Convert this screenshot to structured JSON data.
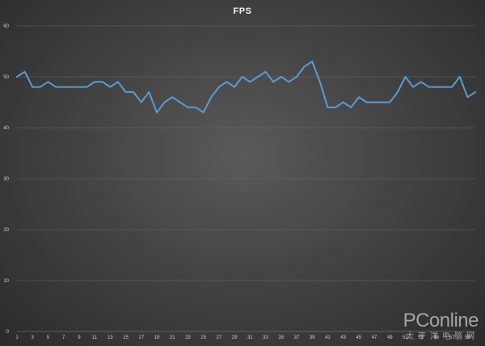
{
  "chart_data": {
    "type": "line",
    "title": "FPS",
    "xlabel": "",
    "ylabel": "",
    "ylim": [
      0,
      60
    ],
    "yticks": [
      "0",
      "10",
      "20",
      "30",
      "40",
      "50",
      "60"
    ],
    "grid": "horizontal",
    "legend": "none",
    "x": [
      1,
      2,
      3,
      4,
      5,
      6,
      7,
      8,
      9,
      10,
      11,
      12,
      13,
      14,
      15,
      16,
      17,
      18,
      19,
      20,
      21,
      22,
      23,
      24,
      25,
      26,
      27,
      28,
      29,
      30,
      31,
      32,
      33,
      34,
      35,
      36,
      37,
      38,
      39,
      40,
      41,
      42,
      43,
      44,
      45,
      46,
      47,
      48,
      49,
      50,
      51,
      52,
      53,
      54,
      55,
      56,
      57,
      58,
      59,
      60
    ],
    "xtick_labels": [
      "1",
      "3",
      "5",
      "7",
      "9",
      "11",
      "13",
      "15",
      "17",
      "19",
      "21",
      "23",
      "25",
      "27",
      "29",
      "31",
      "33",
      "35",
      "37",
      "39",
      "41",
      "43",
      "45",
      "47",
      "49",
      "51",
      "53",
      "55",
      "57",
      "59"
    ],
    "series": [
      {
        "values": [
          50,
          51,
          48,
          48,
          49,
          48,
          48,
          48,
          48,
          48,
          49,
          49,
          48,
          49,
          47,
          47,
          45,
          47,
          43,
          45,
          46,
          45,
          44,
          44,
          43,
          46,
          48,
          49,
          48,
          50,
          49,
          50,
          51,
          49,
          50,
          49,
          50,
          52,
          53,
          49,
          44,
          44,
          45,
          44,
          46,
          45,
          45,
          45,
          45,
          47,
          50,
          48,
          49,
          48,
          48,
          48,
          48,
          50,
          46,
          47
        ]
      }
    ],
    "colors": {
      "line": "#5b9bd5",
      "grid": "#6a6a6a"
    }
  },
  "watermark": {
    "brand": "PConline",
    "sub": "太平洋电脑网"
  }
}
